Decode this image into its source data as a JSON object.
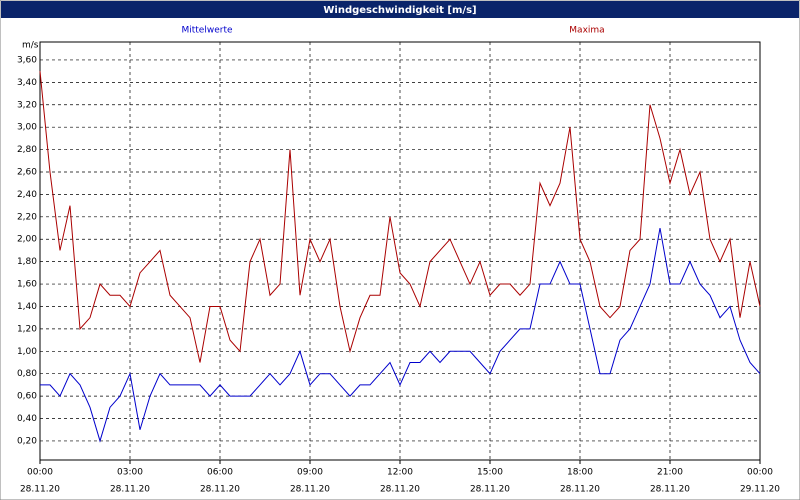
{
  "chart_data": {
    "type": "line",
    "title": "Windgeschwindigkeit [m/s]",
    "ylabel": "m/s",
    "grid": true,
    "x": [
      0,
      20,
      40,
      60,
      80,
      100,
      120,
      140,
      160,
      180,
      200,
      220,
      240,
      260,
      280,
      300,
      320,
      340,
      360,
      380,
      400,
      420,
      440,
      460,
      480,
      500,
      520,
      540,
      560,
      580,
      600,
      620,
      640,
      660,
      680,
      700,
      720,
      740,
      760,
      780,
      800,
      820,
      840,
      860,
      880,
      900,
      920,
      940,
      960,
      980,
      1000,
      1020,
      1040,
      1060,
      1080,
      1100,
      1120,
      1140,
      1160,
      1180,
      1200,
      1220,
      1240,
      1260,
      1280,
      1300,
      1320,
      1340,
      1360,
      1380,
      1400,
      1420,
      1440
    ],
    "xlim": [
      0,
      1440
    ],
    "xticks": [
      {
        "value": 0,
        "label": "00:00",
        "date": "28.11.20"
      },
      {
        "value": 180,
        "label": "03:00",
        "date": "28.11.20"
      },
      {
        "value": 360,
        "label": "06:00",
        "date": "28.11.20"
      },
      {
        "value": 540,
        "label": "09:00",
        "date": "28.11.20"
      },
      {
        "value": 720,
        "label": "12:00",
        "date": "28.11.20"
      },
      {
        "value": 900,
        "label": "15:00",
        "date": "28.11.20"
      },
      {
        "value": 1080,
        "label": "18:00",
        "date": "28.11.20"
      },
      {
        "value": 1260,
        "label": "21:00",
        "date": "28.11.20"
      },
      {
        "value": 1440,
        "label": "00:00",
        "date": "29.11.20"
      }
    ],
    "ylim": [
      0.03,
      3.76
    ],
    "yticks": [
      {
        "value": 0.2,
        "label": "0,20"
      },
      {
        "value": 0.4,
        "label": "0,40"
      },
      {
        "value": 0.6,
        "label": "0,60"
      },
      {
        "value": 0.8,
        "label": "0,80"
      },
      {
        "value": 1.0,
        "label": "1,00"
      },
      {
        "value": 1.2,
        "label": "1,20"
      },
      {
        "value": 1.4,
        "label": "1,40"
      },
      {
        "value": 1.6,
        "label": "1,60"
      },
      {
        "value": 1.8,
        "label": "1,80"
      },
      {
        "value": 2.0,
        "label": "2,00"
      },
      {
        "value": 2.2,
        "label": "2,20"
      },
      {
        "value": 2.4,
        "label": "2,40"
      },
      {
        "value": 2.6,
        "label": "2,60"
      },
      {
        "value": 2.8,
        "label": "2,80"
      },
      {
        "value": 3.0,
        "label": "3,00"
      },
      {
        "value": 3.2,
        "label": "3,20"
      },
      {
        "value": 3.4,
        "label": "3,40"
      },
      {
        "value": 3.6,
        "label": "3,60"
      }
    ],
    "series": [
      {
        "name": "Mittelwerte",
        "color": "#0000cc",
        "values": [
          0.7,
          0.7,
          0.6,
          0.8,
          0.7,
          0.5,
          0.2,
          0.5,
          0.6,
          0.8,
          0.3,
          0.6,
          0.8,
          0.7,
          0.7,
          0.7,
          0.7,
          0.6,
          0.7,
          0.6,
          0.6,
          0.6,
          0.7,
          0.8,
          0.7,
          0.8,
          1.0,
          0.7,
          0.8,
          0.8,
          0.7,
          0.6,
          0.7,
          0.7,
          0.8,
          0.9,
          0.7,
          0.9,
          0.9,
          1.0,
          0.9,
          1.0,
          1.0,
          1.0,
          0.9,
          0.8,
          1.0,
          1.1,
          1.2,
          1.2,
          1.6,
          1.6,
          1.8,
          1.6,
          1.6,
          1.2,
          0.8,
          0.8,
          1.1,
          1.2,
          1.4,
          1.6,
          2.1,
          1.6,
          1.6,
          1.8,
          1.6,
          1.5,
          1.3,
          1.4,
          1.1,
          0.9,
          0.8
        ]
      },
      {
        "name": "Maxima",
        "color": "#aa0000",
        "values": [
          3.5,
          2.6,
          1.9,
          2.3,
          1.2,
          1.3,
          1.6,
          1.5,
          1.5,
          1.4,
          1.7,
          1.8,
          1.9,
          1.5,
          1.4,
          1.3,
          0.9,
          1.4,
          1.4,
          1.1,
          1.0,
          1.8,
          2.0,
          1.5,
          1.6,
          2.8,
          1.5,
          2.0,
          1.8,
          2.0,
          1.4,
          1.0,
          1.3,
          1.5,
          1.5,
          2.2,
          1.7,
          1.6,
          1.4,
          1.8,
          1.9,
          2.0,
          1.8,
          1.6,
          1.8,
          1.5,
          1.6,
          1.6,
          1.5,
          1.6,
          2.5,
          2.3,
          2.5,
          3.0,
          2.0,
          1.8,
          1.4,
          1.3,
          1.4,
          1.9,
          2.0,
          3.2,
          2.9,
          2.5,
          2.8,
          2.4,
          2.6,
          2.0,
          1.8,
          2.0,
          1.3,
          1.8,
          1.4
        ]
      }
    ]
  }
}
